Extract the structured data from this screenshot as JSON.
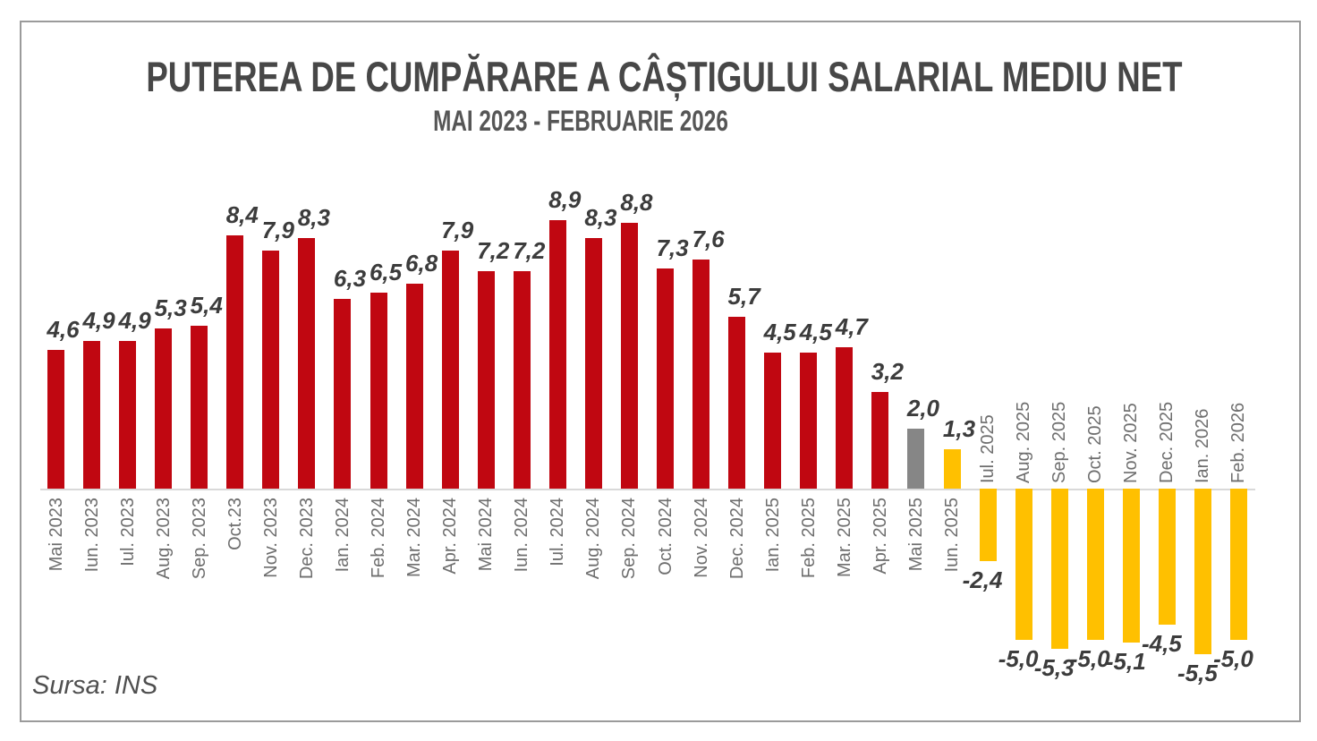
{
  "page": {
    "title": "PUTEREA DE CUMPĂRARE A CÂȘTIGULUI SALARIAL MEDIU NET",
    "subtitle": "MAI 2023 - FEBRUARIE 2026",
    "source": "Sursa: INS"
  },
  "colors": {
    "red": "#c00711",
    "gray": "#868686",
    "yellow": "#ffc000",
    "axis_line": "#d9d9d9",
    "value_text": "#3c3c3c",
    "month_text": "#6e6e6e",
    "title_text": "#474747",
    "frame_border": "#9b9b9b"
  },
  "chart_data": {
    "type": "bar",
    "title": "PUTEREA DE CUMPĂRARE A CÂȘTIGULUI SALARIAL MEDIU NET",
    "subtitle": "MAI 2023 - FEBRUARIE 2026",
    "source": "Sursa: INS",
    "xlabel": "",
    "ylabel": "",
    "ylim": [
      -5.5,
      8.9
    ],
    "grid": false,
    "legend": false,
    "decimal_style": "comma",
    "value_label_position": "outside-end",
    "category_label_rotation_deg": 90,
    "categories": [
      "Mai 2023",
      "Iun. 2023",
      "Iul. 2023",
      "Aug. 2023",
      "Sep. 2023",
      "Oct.23",
      "Nov. 2023",
      "Dec. 2023",
      "Ian. 2024",
      "Feb. 2024",
      "Mar. 2024",
      "Apr. 2024",
      "Mai 2024",
      "Iun. 2024",
      "Iul. 2024",
      "Aug. 2024",
      "Sep. 2024",
      "Oct. 2024",
      "Nov. 2024",
      "Dec. 2024",
      "Ian. 2025",
      "Feb. 2025",
      "Mar. 2025",
      "Apr. 2025",
      "Mai 2025",
      "Iun. 2025",
      "Iul. 2025",
      "Aug. 2025",
      "Sep. 2025",
      "Oct. 2025",
      "Nov. 2025",
      "Dec. 2025",
      "Ian. 2026",
      "Feb. 2026"
    ],
    "values": [
      4.6,
      4.9,
      4.9,
      5.3,
      5.4,
      8.4,
      7.9,
      8.3,
      6.3,
      6.5,
      6.8,
      7.9,
      7.2,
      7.2,
      8.9,
      8.3,
      8.8,
      7.3,
      7.6,
      5.7,
      4.5,
      4.5,
      4.7,
      3.2,
      2.0,
      1.3,
      -2.4,
      -5.0,
      -5.3,
      -5.0,
      -5.1,
      -4.5,
      -5.5,
      -5.0
    ],
    "display_values": [
      "4,6",
      "4,9",
      "4,9",
      "5,3",
      "5,4",
      "8,4",
      "7,9",
      "8,3",
      "6,3",
      "6,5",
      "6,8",
      "7,9",
      "7,2",
      "7,2",
      "8,9",
      "8,3",
      "8,8",
      "7,3",
      "7,6",
      "5,7",
      "4,5",
      "4,5",
      "4,7",
      "3,2",
      "2,0",
      "1,3",
      "-2,4",
      "-5,0",
      "-5,3",
      "-5,0",
      "-5,1",
      "-4,5",
      "-5,5",
      "-5,0"
    ],
    "bar_color_keys": [
      "red",
      "red",
      "red",
      "red",
      "red",
      "red",
      "red",
      "red",
      "red",
      "red",
      "red",
      "red",
      "red",
      "red",
      "red",
      "red",
      "red",
      "red",
      "red",
      "red",
      "red",
      "red",
      "red",
      "red",
      "gray",
      "yellow",
      "yellow",
      "yellow",
      "yellow",
      "yellow",
      "yellow",
      "yellow",
      "yellow",
      "yellow"
    ]
  }
}
